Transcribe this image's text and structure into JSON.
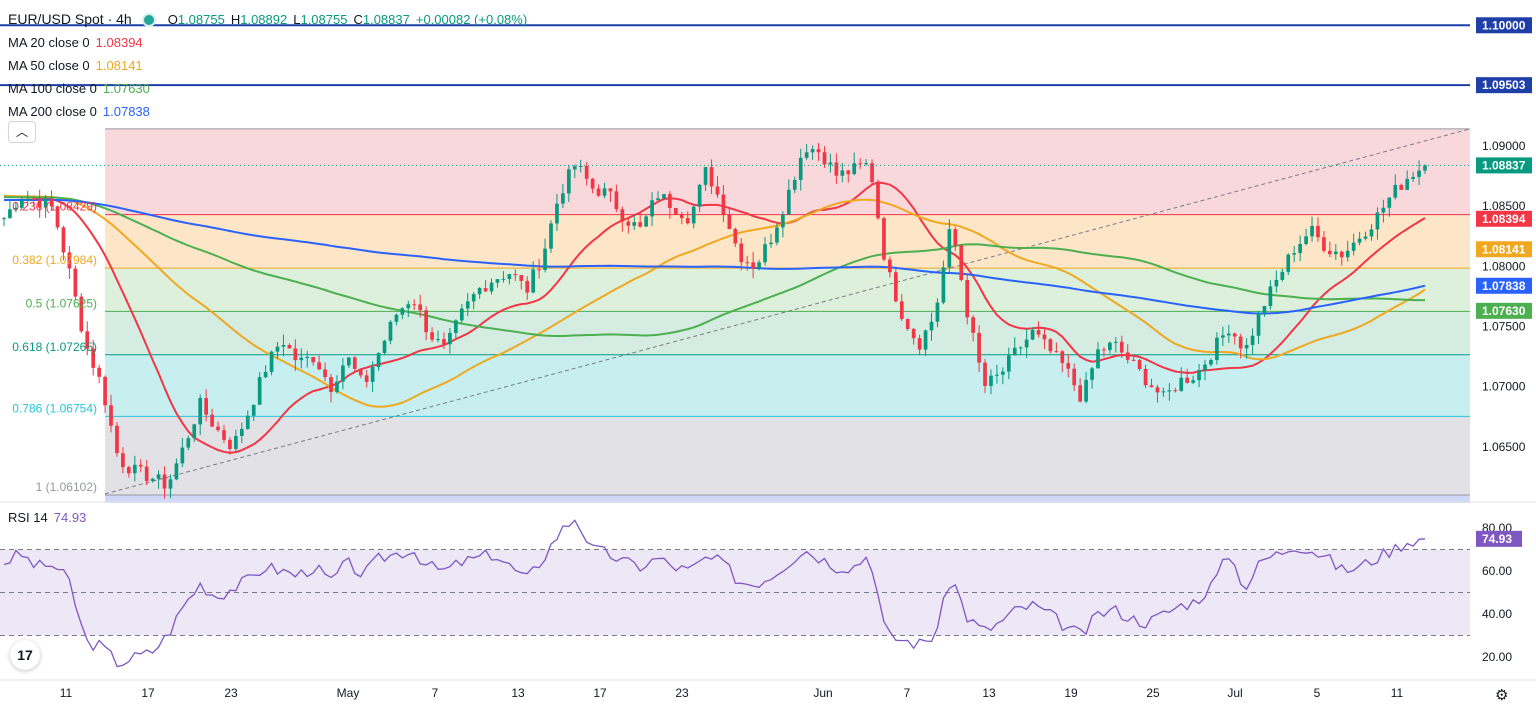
{
  "header": {
    "symbol": "EUR/USD Spot · 4h",
    "ohlc": {
      "o_label": "O",
      "o": "1.08755",
      "h_label": "H",
      "h": "1.08892",
      "l_label": "L",
      "l": "1.08755",
      "c_label": "C",
      "c": "1.08837"
    },
    "change": "+0.00082 (+0.08%)",
    "moving_averages": [
      {
        "label": "MA 20 close 0",
        "value": "1.08394",
        "color": "#f23645"
      },
      {
        "label": "MA 50 close 0",
        "value": "1.08141",
        "color": "#f0a820"
      },
      {
        "label": "MA 100 close 0",
        "value": "1.07630",
        "color": "#4caf50"
      },
      {
        "label": "MA 200 close 0",
        "value": "1.07838",
        "color": "#2962ff"
      }
    ],
    "collapse_icon": "chevron-up-icon"
  },
  "rsi_legend": {
    "label": "RSI 14",
    "value": "74.93"
  },
  "colors": {
    "up": "#089981",
    "down": "#f23645",
    "ma20": "#f23645",
    "ma50": "#f0a820",
    "ma100": "#4caf50",
    "ma200": "#2962ff",
    "rsi": "#7e57c2",
    "hline": "#1e3ea8"
  },
  "chart_data": {
    "type": "candlestick",
    "y_price_ticks": [
      "1.09000",
      "1.08500",
      "1.08000",
      "1.07500",
      "1.07000",
      "1.06500"
    ],
    "y_price_range": [
      1.0606,
      1.1016
    ],
    "x_tick_labels": [
      "11",
      "17",
      "23",
      "May",
      "7",
      "13",
      "17",
      "23",
      "Jun",
      "7",
      "13",
      "19",
      "25",
      "Jul",
      "5",
      "11"
    ],
    "horizontal_lines": [
      {
        "value": 1.1,
        "label": "1.10000"
      },
      {
        "value": 1.09503,
        "label": "1.09503"
      }
    ],
    "fibonacci": [
      {
        "ratio": "0",
        "value": 1.0914,
        "label": ""
      },
      {
        "ratio": "0.236",
        "value": 1.08429,
        "label": "0.236 (1.08429)"
      },
      {
        "ratio": "0.382",
        "value": 1.07984,
        "label": "0.382 (1.07984)"
      },
      {
        "ratio": "0.5",
        "value": 1.07625,
        "label": "0.5 (1.07625)"
      },
      {
        "ratio": "0.618",
        "value": 1.07265,
        "label": "0.618 (1.07265)"
      },
      {
        "ratio": "0.786",
        "value": 1.06754,
        "label": "0.786 (1.06754)"
      },
      {
        "ratio": "1",
        "value": 1.06102,
        "label": "1 (1.06102)"
      }
    ],
    "price_badges": [
      {
        "label": "1.10000",
        "value": 1.1,
        "color": "#1e3ea8"
      },
      {
        "label": "1.09503",
        "value": 1.09503,
        "color": "#1e3ea8"
      },
      {
        "label": "1.08837",
        "value": 1.08837,
        "color": "#089981"
      },
      {
        "label": "1.08394",
        "value": 1.08394,
        "color": "#f23645"
      },
      {
        "label": "1.08141",
        "value": 1.08141,
        "color": "#f0a820"
      },
      {
        "label": "1.07838",
        "value": 1.07838,
        "color": "#2962ff"
      },
      {
        "label": "1.07630",
        "value": 1.0763,
        "color": "#4caf50"
      }
    ],
    "close_path": [
      1.084,
      1.0858,
      1.0855,
      1.0848,
      1.0795,
      1.0735,
      1.07,
      1.064,
      1.063,
      1.0625,
      1.0618,
      1.065,
      1.0685,
      1.0665,
      1.065,
      1.068,
      1.0715,
      1.074,
      1.072,
      1.0725,
      1.07,
      1.0725,
      1.07,
      1.073,
      1.076,
      1.0775,
      1.0745,
      1.073,
      1.076,
      1.078,
      1.079,
      1.0795,
      1.078,
      1.081,
      1.086,
      1.0885,
      1.0865,
      1.086,
      1.084,
      1.083,
      1.086,
      1.085,
      1.084,
      1.088,
      1.085,
      1.081,
      1.08,
      1.0825,
      1.086,
      1.09,
      1.0895,
      1.0875,
      1.088,
      1.0885,
      1.08,
      1.076,
      1.0735,
      1.076,
      1.0835,
      1.076,
      1.07,
      1.071,
      1.073,
      1.0745,
      1.073,
      1.0715,
      1.069,
      1.073,
      1.0735,
      1.072,
      1.0705,
      1.069,
      1.0705,
      1.071,
      1.073,
      1.075,
      1.073,
      1.0765,
      1.079,
      1.0815,
      1.083,
      1.0815,
      1.081,
      1.0825,
      1.084,
      1.086,
      1.0875,
      1.0884
    ],
    "current_price": 1.08837,
    "rsi": {
      "y_ticks": [
        "80.00",
        "60.00",
        "40.00",
        "20.00"
      ],
      "y_range": [
        14,
        86
      ],
      "levels": [
        70,
        50,
        30
      ],
      "current": 74.93,
      "path": [
        64,
        68,
        62,
        63,
        55,
        27,
        25,
        17,
        20,
        22,
        30,
        44,
        54,
        48,
        52,
        56,
        62,
        60,
        58,
        62,
        55,
        64,
        58,
        66,
        68,
        70,
        62,
        60,
        64,
        66,
        68,
        62,
        56,
        66,
        78,
        85,
        70,
        68,
        64,
        62,
        66,
        62,
        60,
        66,
        64,
        55,
        54,
        58,
        64,
        70,
        66,
        62,
        62,
        68,
        30,
        28,
        26,
        30,
        58,
        38,
        32,
        36,
        42,
        44,
        40,
        34,
        30,
        40,
        42,
        38,
        36,
        40,
        44,
        46,
        54,
        68,
        52,
        65,
        68,
        72,
        70,
        66,
        60,
        62,
        66,
        70,
        74,
        75
      ]
    }
  }
}
